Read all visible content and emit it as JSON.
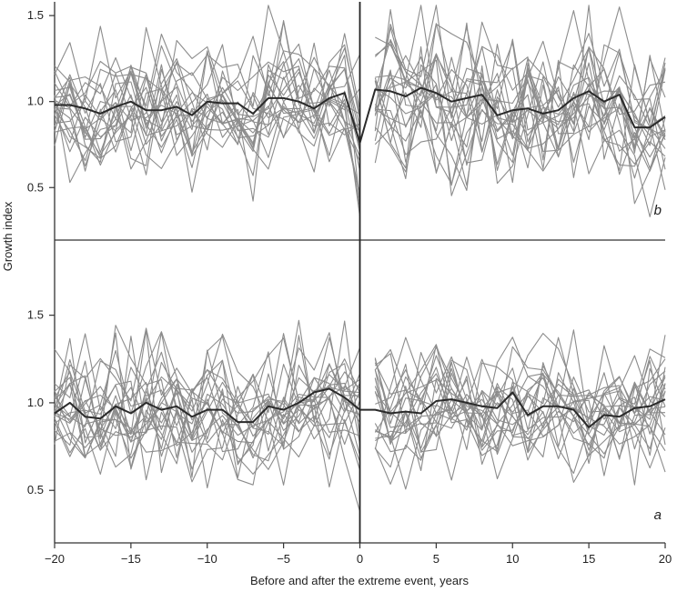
{
  "colors": {
    "individual": "#8c8c8c",
    "mean": "#2a2a2a",
    "axis": "#333333",
    "event_line": "#222222"
  },
  "chart_data": [
    {
      "type": "line",
      "panel": "b",
      "position": "top",
      "xlabel": "Before and after the extreme event, years",
      "ylabel": "Growth index",
      "xlim": [
        -20,
        20
      ],
      "ylim": [
        0.2,
        1.58
      ],
      "xticks": [
        -20,
        -15,
        -10,
        -5,
        0,
        5,
        10,
        15,
        20
      ],
      "xtick_labels": [
        "−20",
        "−15",
        "−10",
        "−5",
        "0",
        "5",
        "10",
        "15",
        "20"
      ],
      "yticks": [
        0.5,
        1.0,
        1.5
      ],
      "ytick_labels": [
        "0.5",
        "1.0",
        "1.5"
      ],
      "event_x": 0,
      "n_individual_series": 22,
      "individual_seed": 7,
      "individual_sd_before": 0.16,
      "individual_sd_after": 0.2,
      "mean_series": {
        "name": "Mean",
        "x": [
          -20,
          -19,
          -18,
          -17,
          -16,
          -15,
          -14,
          -13,
          -12,
          -11,
          -10,
          -9,
          -8,
          -7,
          -6,
          -5,
          -4,
          -3,
          -2,
          -1,
          0,
          1,
          2,
          3,
          4,
          5,
          6,
          7,
          8,
          9,
          10,
          11,
          12,
          13,
          14,
          15,
          16,
          17,
          18,
          19,
          20
        ],
        "values": [
          0.98,
          0.98,
          0.96,
          0.93,
          0.97,
          1.0,
          0.95,
          0.95,
          0.97,
          0.92,
          1.0,
          0.99,
          0.99,
          0.93,
          1.02,
          1.02,
          1.0,
          0.96,
          1.02,
          1.05,
          0.76,
          1.07,
          1.06,
          1.03,
          1.08,
          1.05,
          1.0,
          1.02,
          1.04,
          0.92,
          0.95,
          0.96,
          0.93,
          0.95,
          1.02,
          1.06,
          1.0,
          1.04,
          0.85,
          0.85,
          0.91
        ]
      }
    },
    {
      "type": "line",
      "panel": "a",
      "position": "bottom",
      "xlabel": "Before and after the extreme event, years",
      "ylabel": "Growth index",
      "xlim": [
        -20,
        20
      ],
      "ylim": [
        0.2,
        1.82
      ],
      "xticks": [
        -20,
        -15,
        -10,
        -5,
        0,
        5,
        10,
        15,
        20
      ],
      "xtick_labels": [
        "−20",
        "−15",
        "−10",
        "−5",
        "0",
        "5",
        "10",
        "15",
        "20"
      ],
      "yticks": [
        0.5,
        1.0,
        1.5
      ],
      "ytick_labels": [
        "0.5",
        "1.0",
        "1.5"
      ],
      "event_x": 0,
      "n_individual_series": 22,
      "individual_seed": 29,
      "individual_sd_before": 0.17,
      "individual_sd_after": 0.16,
      "mean_series": {
        "name": "Mean",
        "x": [
          -20,
          -19,
          -18,
          -17,
          -16,
          -15,
          -14,
          -13,
          -12,
          -11,
          -10,
          -9,
          -8,
          -7,
          -6,
          -5,
          -4,
          -3,
          -2,
          -1,
          0,
          1,
          2,
          3,
          4,
          5,
          6,
          7,
          8,
          9,
          10,
          11,
          12,
          13,
          14,
          15,
          16,
          17,
          18,
          19,
          20
        ],
        "values": [
          0.94,
          1.0,
          0.92,
          0.91,
          0.98,
          0.94,
          1.0,
          0.96,
          0.98,
          0.92,
          0.96,
          0.96,
          0.89,
          0.89,
          0.98,
          0.96,
          1.0,
          1.06,
          1.08,
          1.03,
          0.96,
          0.96,
          0.94,
          0.95,
          0.94,
          1.01,
          1.02,
          1.0,
          0.98,
          0.97,
          1.06,
          0.93,
          0.98,
          0.98,
          0.96,
          0.86,
          0.93,
          0.92,
          0.97,
          0.98,
          1.02
        ]
      }
    }
  ]
}
